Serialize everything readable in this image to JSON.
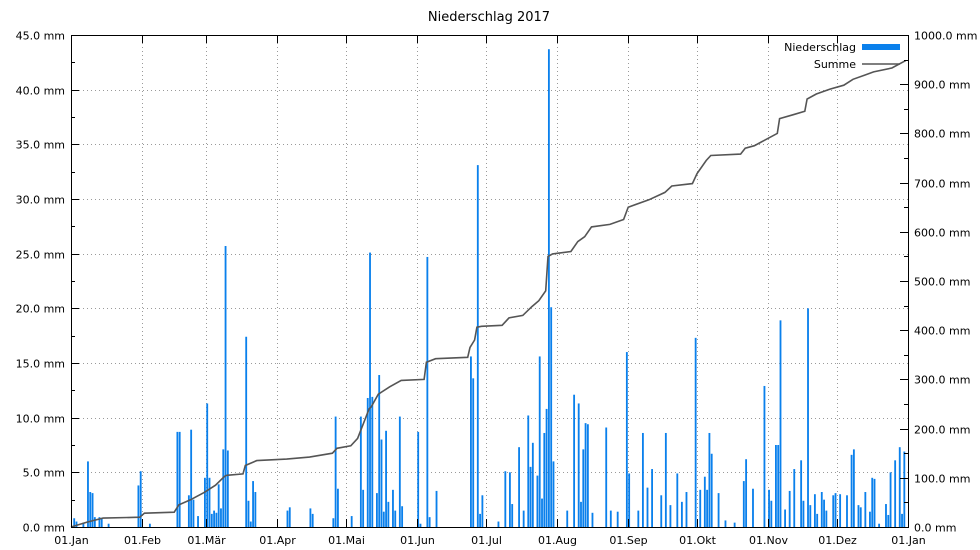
{
  "chart_data": {
    "type": "bar",
    "title": "Niederschlag 2017",
    "xlim": [
      "2017-01-01",
      "2018-01-01"
    ],
    "x_ticks": [
      "01.Jan",
      "01.Feb",
      "01.Mär",
      "01.Apr",
      "01.Mai",
      "01.Jun",
      "01.Jul",
      "01.Aug",
      "01.Sep",
      "01.Okt",
      "01.Nov",
      "01.Dez",
      "01.Jan"
    ],
    "x_tick_dates": [
      "2017-01-01",
      "2017-02-01",
      "2017-03-01",
      "2017-04-01",
      "2017-05-01",
      "2017-06-01",
      "2017-07-01",
      "2017-08-01",
      "2017-09-01",
      "2017-10-01",
      "2017-11-01",
      "2017-12-01",
      "2018-01-01"
    ],
    "y_left": {
      "ylim": [
        0,
        45
      ],
      "ticks": [
        "0.0 mm",
        "5.0 mm",
        "10.0 mm",
        "15.0 mm",
        "20.0 mm",
        "25.0 mm",
        "30.0 mm",
        "35.0 mm",
        "40.0 mm",
        "45.0 mm"
      ]
    },
    "y_right": {
      "ylim": [
        0,
        1000
      ],
      "ticks": [
        "0.0 mm",
        "100.0 mm",
        "200.0 mm",
        "300.0 mm",
        "400.0 mm",
        "500.0 mm",
        "600.0 mm",
        "700.0 mm",
        "800.0 mm",
        "900.0 mm",
        "1000.0 mm"
      ]
    },
    "grid": true,
    "legend_position": "top-right",
    "series": [
      {
        "name": "Niederschlag",
        "kind": "bar",
        "axis": "left",
        "color": "#0a80ec",
        "points": [
          [
            "2017-01-02",
            0.8
          ],
          [
            "2017-01-03",
            0.5
          ],
          [
            "2017-01-06",
            0.4
          ],
          [
            "2017-01-08",
            6.0
          ],
          [
            "2017-01-09",
            3.2
          ],
          [
            "2017-01-10",
            3.1
          ],
          [
            "2017-01-11",
            0.9
          ],
          [
            "2017-01-13",
            0.9
          ],
          [
            "2017-01-14",
            0.8
          ],
          [
            "2017-01-17",
            0.3
          ],
          [
            "2017-01-30",
            3.8
          ],
          [
            "2017-01-31",
            5.1
          ],
          [
            "2017-02-04",
            0.3
          ],
          [
            "2017-02-16",
            8.7
          ],
          [
            "2017-02-17",
            8.7
          ],
          [
            "2017-02-21",
            2.9
          ],
          [
            "2017-02-22",
            8.9
          ],
          [
            "2017-02-23",
            2.5
          ],
          [
            "2017-02-25",
            1.0
          ],
          [
            "2017-02-28",
            4.5
          ],
          [
            "2017-03-01",
            11.3
          ],
          [
            "2017-03-02",
            4.5
          ],
          [
            "2017-03-03",
            1.2
          ],
          [
            "2017-03-04",
            1.5
          ],
          [
            "2017-03-05",
            1.3
          ],
          [
            "2017-03-06",
            3.9
          ],
          [
            "2017-03-07",
            1.7
          ],
          [
            "2017-03-08",
            7.1
          ],
          [
            "2017-03-09",
            25.7
          ],
          [
            "2017-03-10",
            7.0
          ],
          [
            "2017-03-18",
            17.4
          ],
          [
            "2017-03-19",
            2.4
          ],
          [
            "2017-03-20",
            0.5
          ],
          [
            "2017-03-21",
            4.2
          ],
          [
            "2017-03-22",
            3.2
          ],
          [
            "2017-04-05",
            1.5
          ],
          [
            "2017-04-06",
            1.8
          ],
          [
            "2017-04-15",
            1.7
          ],
          [
            "2017-04-16",
            1.2
          ],
          [
            "2017-04-25",
            0.8
          ],
          [
            "2017-04-26",
            10.1
          ],
          [
            "2017-04-27",
            3.5
          ],
          [
            "2017-05-03",
            1.0
          ],
          [
            "2017-05-07",
            10.1
          ],
          [
            "2017-05-08",
            3.4
          ],
          [
            "2017-05-10",
            11.8
          ],
          [
            "2017-05-11",
            25.1
          ],
          [
            "2017-05-12",
            11.9
          ],
          [
            "2017-05-14",
            3.1
          ],
          [
            "2017-05-15",
            13.9
          ],
          [
            "2017-05-16",
            8.0
          ],
          [
            "2017-05-17",
            1.4
          ],
          [
            "2017-05-18",
            8.8
          ],
          [
            "2017-05-19",
            2.3
          ],
          [
            "2017-05-21",
            3.4
          ],
          [
            "2017-05-22",
            1.5
          ],
          [
            "2017-05-24",
            10.1
          ],
          [
            "2017-05-25",
            1.9
          ],
          [
            "2017-06-01",
            8.7
          ],
          [
            "2017-06-02",
            0.3
          ],
          [
            "2017-06-05",
            24.7
          ],
          [
            "2017-06-06",
            0.9
          ],
          [
            "2017-06-09",
            3.3
          ],
          [
            "2017-06-24",
            15.6
          ],
          [
            "2017-06-25",
            13.6
          ],
          [
            "2017-06-27",
            33.1
          ],
          [
            "2017-06-28",
            1.2
          ],
          [
            "2017-06-29",
            2.9
          ],
          [
            "2017-07-06",
            0.5
          ],
          [
            "2017-07-09",
            5.1
          ],
          [
            "2017-07-11",
            5.0
          ],
          [
            "2017-07-12",
            2.1
          ],
          [
            "2017-07-15",
            7.3
          ],
          [
            "2017-07-17",
            1.5
          ],
          [
            "2017-07-19",
            10.2
          ],
          [
            "2017-07-20",
            5.5
          ],
          [
            "2017-07-21",
            7.7
          ],
          [
            "2017-07-23",
            4.7
          ],
          [
            "2017-07-24",
            15.6
          ],
          [
            "2017-07-25",
            2.6
          ],
          [
            "2017-07-26",
            8.6
          ],
          [
            "2017-07-27",
            10.8
          ],
          [
            "2017-07-28",
            43.7
          ],
          [
            "2017-07-29",
            20.1
          ],
          [
            "2017-07-30",
            6.0
          ],
          [
            "2017-08-05",
            1.5
          ],
          [
            "2017-08-08",
            12.1
          ],
          [
            "2017-08-10",
            11.3
          ],
          [
            "2017-08-11",
            2.3
          ],
          [
            "2017-08-12",
            7.1
          ],
          [
            "2017-08-13",
            9.5
          ],
          [
            "2017-08-14",
            9.4
          ],
          [
            "2017-08-16",
            1.3
          ],
          [
            "2017-08-22",
            9.1
          ],
          [
            "2017-08-24",
            1.5
          ],
          [
            "2017-08-27",
            1.4
          ],
          [
            "2017-08-31",
            16.0
          ],
          [
            "2017-09-01",
            4.9
          ],
          [
            "2017-09-05",
            1.5
          ],
          [
            "2017-09-07",
            8.6
          ],
          [
            "2017-09-09",
            3.6
          ],
          [
            "2017-09-11",
            5.3
          ],
          [
            "2017-09-15",
            2.9
          ],
          [
            "2017-09-17",
            8.6
          ],
          [
            "2017-09-19",
            2.0
          ],
          [
            "2017-09-22",
            4.9
          ],
          [
            "2017-09-24",
            2.3
          ],
          [
            "2017-09-26",
            3.2
          ],
          [
            "2017-09-30",
            17.3
          ],
          [
            "2017-10-02",
            3.4
          ],
          [
            "2017-10-04",
            4.6
          ],
          [
            "2017-10-05",
            3.4
          ],
          [
            "2017-10-06",
            8.6
          ],
          [
            "2017-10-07",
            6.7
          ],
          [
            "2017-10-10",
            3.1
          ],
          [
            "2017-10-13",
            0.6
          ],
          [
            "2017-10-17",
            0.4
          ],
          [
            "2017-10-21",
            4.2
          ],
          [
            "2017-10-22",
            6.2
          ],
          [
            "2017-10-25",
            3.5
          ],
          [
            "2017-10-30",
            12.9
          ],
          [
            "2017-11-01",
            3.4
          ],
          [
            "2017-11-02",
            2.4
          ],
          [
            "2017-11-04",
            7.5
          ],
          [
            "2017-11-05",
            7.5
          ],
          [
            "2017-11-06",
            18.9
          ],
          [
            "2017-11-08",
            1.6
          ],
          [
            "2017-11-10",
            3.3
          ],
          [
            "2017-11-12",
            5.3
          ],
          [
            "2017-11-15",
            6.1
          ],
          [
            "2017-11-16",
            2.4
          ],
          [
            "2017-11-18",
            20.0
          ],
          [
            "2017-11-19",
            2.0
          ],
          [
            "2017-11-21",
            3.0
          ],
          [
            "2017-11-22",
            1.2
          ],
          [
            "2017-11-24",
            3.2
          ],
          [
            "2017-11-25",
            2.5
          ],
          [
            "2017-11-26",
            1.5
          ],
          [
            "2017-11-29",
            2.9
          ],
          [
            "2017-11-30",
            3.1
          ],
          [
            "2017-12-02",
            3.0
          ],
          [
            "2017-12-05",
            2.9
          ],
          [
            "2017-12-07",
            6.6
          ],
          [
            "2017-12-08",
            7.1
          ],
          [
            "2017-12-10",
            2.0
          ],
          [
            "2017-12-11",
            1.8
          ],
          [
            "2017-12-13",
            3.2
          ],
          [
            "2017-12-15",
            1.4
          ],
          [
            "2017-12-16",
            4.5
          ],
          [
            "2017-12-17",
            4.4
          ],
          [
            "2017-12-19",
            0.3
          ],
          [
            "2017-12-22",
            2.1
          ],
          [
            "2017-12-23",
            1.1
          ],
          [
            "2017-12-24",
            5.0
          ],
          [
            "2017-12-26",
            6.1
          ],
          [
            "2017-12-28",
            7.3
          ],
          [
            "2017-12-29",
            1.2
          ],
          [
            "2017-12-30",
            6.9
          ]
        ]
      },
      {
        "name": "Summe",
        "kind": "line",
        "axis": "right",
        "color": "#555555",
        "points": [
          [
            "2017-01-01",
            0
          ],
          [
            "2017-01-08",
            10
          ],
          [
            "2017-01-15",
            18
          ],
          [
            "2017-01-31",
            20
          ],
          [
            "2017-02-02",
            28
          ],
          [
            "2017-02-15",
            30
          ],
          [
            "2017-02-17",
            45
          ],
          [
            "2017-02-22",
            55
          ],
          [
            "2017-02-28",
            70
          ],
          [
            "2017-03-05",
            85
          ],
          [
            "2017-03-09",
            103
          ],
          [
            "2017-03-10",
            105
          ],
          [
            "2017-03-17",
            108
          ],
          [
            "2017-03-18",
            125
          ],
          [
            "2017-03-23",
            135
          ],
          [
            "2017-04-05",
            138
          ],
          [
            "2017-04-15",
            142
          ],
          [
            "2017-04-25",
            150
          ],
          [
            "2017-04-27",
            160
          ],
          [
            "2017-05-03",
            165
          ],
          [
            "2017-05-06",
            180
          ],
          [
            "2017-05-11",
            240
          ],
          [
            "2017-05-12",
            245
          ],
          [
            "2017-05-15",
            270
          ],
          [
            "2017-05-20",
            285
          ],
          [
            "2017-05-25",
            298
          ],
          [
            "2017-06-04",
            300
          ],
          [
            "2017-06-05",
            335
          ],
          [
            "2017-06-09",
            342
          ],
          [
            "2017-06-23",
            345
          ],
          [
            "2017-06-24",
            365
          ],
          [
            "2017-06-26",
            380
          ],
          [
            "2017-06-27",
            406
          ],
          [
            "2017-06-29",
            408
          ],
          [
            "2017-07-08",
            410
          ],
          [
            "2017-07-11",
            425
          ],
          [
            "2017-07-17",
            430
          ],
          [
            "2017-07-21",
            448
          ],
          [
            "2017-07-24",
            460
          ],
          [
            "2017-07-27",
            480
          ],
          [
            "2017-07-28",
            550
          ],
          [
            "2017-07-30",
            555
          ],
          [
            "2017-08-07",
            560
          ],
          [
            "2017-08-10",
            580
          ],
          [
            "2017-08-13",
            590
          ],
          [
            "2017-08-16",
            610
          ],
          [
            "2017-08-24",
            615
          ],
          [
            "2017-08-30",
            625
          ],
          [
            "2017-09-01",
            650
          ],
          [
            "2017-09-10",
            665
          ],
          [
            "2017-09-17",
            680
          ],
          [
            "2017-09-20",
            693
          ],
          [
            "2017-09-29",
            698
          ],
          [
            "2017-10-01",
            718
          ],
          [
            "2017-10-05",
            745
          ],
          [
            "2017-10-07",
            755
          ],
          [
            "2017-10-20",
            758
          ],
          [
            "2017-10-22",
            770
          ],
          [
            "2017-10-26",
            775
          ],
          [
            "2017-10-30",
            785
          ],
          [
            "2017-11-05",
            800
          ],
          [
            "2017-11-06",
            830
          ],
          [
            "2017-11-12",
            838
          ],
          [
            "2017-11-17",
            845
          ],
          [
            "2017-11-18",
            870
          ],
          [
            "2017-11-22",
            880
          ],
          [
            "2017-11-28",
            890
          ],
          [
            "2017-12-04",
            898
          ],
          [
            "2017-12-08",
            910
          ],
          [
            "2017-12-13",
            918
          ],
          [
            "2017-12-17",
            925
          ],
          [
            "2017-12-25",
            933
          ],
          [
            "2017-12-31",
            948
          ]
        ]
      }
    ]
  }
}
